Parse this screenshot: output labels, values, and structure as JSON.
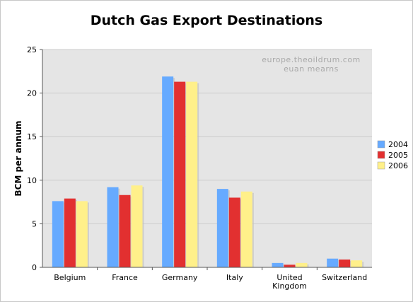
{
  "chart_data": {
    "type": "bar",
    "title": "Dutch Gas Export Destinations",
    "xlabel": "",
    "ylabel": "BCM per annum",
    "ylim": [
      0,
      25
    ],
    "yticks": [
      0,
      5,
      10,
      15,
      20,
      25
    ],
    "grid": true,
    "legend_position": "right",
    "categories": [
      "Belgium",
      "France",
      "Germany",
      "Italy",
      "United Kingdom",
      "Switzerland"
    ],
    "category_lines": [
      [
        "Belgium"
      ],
      [
        "France"
      ],
      [
        "Germany"
      ],
      [
        "Italy"
      ],
      [
        "United",
        "Kingdom"
      ],
      [
        "Switzerland"
      ]
    ],
    "series": [
      {
        "name": "2004",
        "color": "#66aaff",
        "values": [
          7.6,
          9.2,
          21.9,
          9.0,
          0.5,
          1.0
        ]
      },
      {
        "name": "2005",
        "color": "#e23030",
        "values": [
          7.9,
          8.3,
          21.3,
          8.0,
          0.3,
          0.9
        ]
      },
      {
        "name": "2006",
        "color": "#fff08a",
        "values": [
          7.6,
          9.4,
          21.3,
          8.7,
          0.5,
          0.8
        ]
      }
    ],
    "annotations": [
      "europe.theoildrum.com",
      "euan mearns"
    ],
    "colors": {
      "plot_background": "#e5e5e5",
      "grid": "#cccccc",
      "axis": "#555555"
    }
  }
}
